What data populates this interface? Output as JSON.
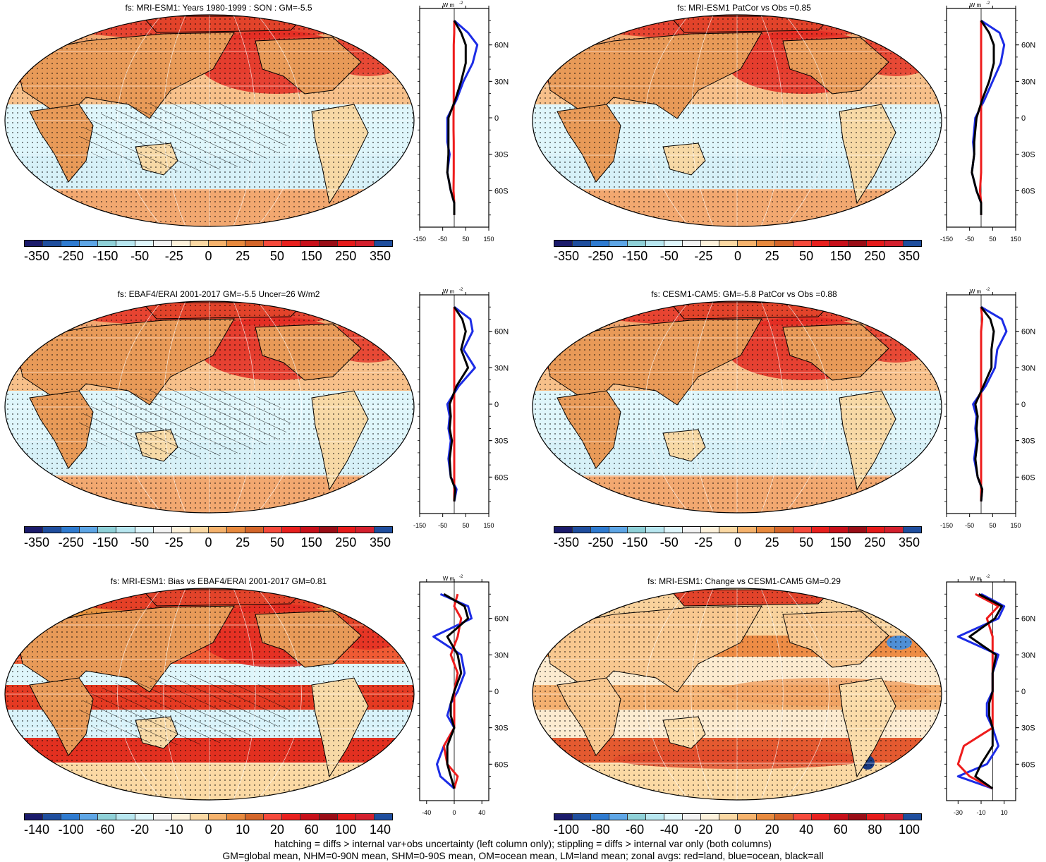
{
  "palette": [
    "#1b1b6b",
    "#1f4e9e",
    "#2f7bd0",
    "#5ea6e6",
    "#8fd1d8",
    "#b8e7f0",
    "#dff6fb",
    "#f4f4f4",
    "#fdf2dc",
    "#fbd9a4",
    "#f6b36d",
    "#e88a3e",
    "#d4662a",
    "#f64a3c",
    "#e8201e",
    "#c8101a",
    "#9a0d16",
    "#e61a1a",
    "#d4202e",
    "#1f4e9e"
  ],
  "colors": {
    "land": "#e8a060",
    "ocean_light": "#dff6fb",
    "ocean_warm": "#f2a870",
    "hot": "#e32a22",
    "cold": "#9fd8ea",
    "tan": "#f7d9a6",
    "red_line": "#ee1c1c",
    "blue_line": "#1c2ce6",
    "black_line": "#000000"
  },
  "panels": [
    {
      "title": "fs: MRI-ESM1: Years 1980-1999 : SON : GM=-5.5",
      "cb_labels": [
        "-350",
        "-250",
        "-150",
        "-50",
        "-25",
        "0",
        "25",
        "50",
        "150",
        "250",
        "350"
      ],
      "zonal_x_ticks": [
        "-150",
        "-50",
        "50",
        "150"
      ],
      "variant": "clim"
    },
    {
      "title": "fs: MRI-ESM1 PatCor vs Obs =0.85",
      "cb_labels": [
        "-350",
        "-250",
        "-150",
        "-50",
        "-25",
        "0",
        "25",
        "50",
        "150",
        "250",
        "350"
      ],
      "zonal_x_ticks": [
        "-150",
        "-50",
        "50",
        "150"
      ],
      "variant": "clim"
    },
    {
      "title": "fs: EBAF4/ERAI 2001-2017 GM=-5.5 Uncer=26 W/m2",
      "cb_labels": [
        "-350",
        "-250",
        "-150",
        "-50",
        "-25",
        "0",
        "25",
        "50",
        "150",
        "250",
        "350"
      ],
      "zonal_x_ticks": [
        "-150",
        "-50",
        "50",
        "150"
      ],
      "variant": "clim"
    },
    {
      "title": "fs: CESM1-CAM5: GM=-5.8 PatCor vs Obs =0.88",
      "cb_labels": [
        "-350",
        "-250",
        "-150",
        "-50",
        "-25",
        "0",
        "25",
        "50",
        "150",
        "250",
        "350"
      ],
      "zonal_x_ticks": [
        "-150",
        "-50",
        "50",
        "150"
      ],
      "variant": "clim"
    },
    {
      "title": "fs: MRI-ESM1: Bias vs EBAF4/ERAI 2001-2017  GM=0.81",
      "cb_labels": [
        "-140",
        "-100",
        "-60",
        "-20",
        "-10",
        "0",
        "10",
        "20",
        "60",
        "100",
        "140"
      ],
      "zonal_x_ticks": [
        "-40",
        "0",
        "40"
      ],
      "variant": "bias"
    },
    {
      "title": "fs: MRI-ESM1: Change vs CESM1-CAM5 GM=0.29",
      "cb_labels": [
        "-100",
        "-80",
        "-60",
        "-40",
        "-20",
        "0",
        "20",
        "40",
        "60",
        "80",
        "100"
      ],
      "zonal_x_ticks": [
        "-30",
        "-10",
        "10"
      ],
      "variant": "change"
    }
  ],
  "zonal_lat_labels": [
    "60N",
    "30N",
    "0",
    "30S",
    "60S"
  ],
  "zonal_unit": "W m",
  "zonal_unit_sup": "-2",
  "footer": {
    "line1": "hatching = diffs > internal var+obs uncertainty (left column only); stippling = diffs > internal var only (both columns)",
    "line2": "GM=global mean, NHM=0-90N mean, SHM=0-90S mean, OM=ocean mean, LM=land mean; zonal avgs: red=land, blue=ocean, black=all"
  },
  "chart_data": [
    {
      "type": "heatmap",
      "title": "fs: MRI-ESM1: Years 1980-1999 : SON : GM=-5.5",
      "colorbar": [
        -350,
        -250,
        -150,
        -50,
        -25,
        0,
        25,
        50,
        150,
        250,
        350
      ],
      "zonal_profile": {
        "lat": [
          80,
          70,
          60,
          45,
          30,
          15,
          0,
          -10,
          -20,
          -30,
          -45,
          -60,
          -70,
          -80
        ],
        "land": [
          0,
          0,
          -2,
          -2,
          -2,
          -2,
          -3,
          -3,
          -2,
          -2,
          -2,
          -3,
          0,
          0
        ],
        "ocean": [
          0,
          60,
          100,
          80,
          40,
          10,
          -30,
          -30,
          -30,
          -20,
          -30,
          -15,
          0,
          0
        ],
        "all": [
          0,
          30,
          50,
          50,
          30,
          5,
          -25,
          -25,
          -25,
          -25,
          -30,
          -15,
          0,
          0
        ]
      }
    },
    {
      "type": "heatmap",
      "title": "fs: MRI-ESM1 PatCor vs Obs =0.85",
      "colorbar": [
        -350,
        -250,
        -150,
        -50,
        -25,
        0,
        25,
        50,
        150,
        250,
        350
      ],
      "zonal_profile": {
        "lat": [
          80,
          70,
          60,
          45,
          30,
          15,
          0,
          -10,
          -20,
          -30,
          -45,
          -60,
          -70,
          -80
        ],
        "land": [
          0,
          0,
          0,
          0,
          0,
          0,
          0,
          0,
          0,
          0,
          0,
          -5,
          0,
          0
        ],
        "ocean": [
          0,
          80,
          100,
          85,
          50,
          15,
          -25,
          -30,
          -35,
          -30,
          -40,
          -20,
          0,
          0
        ],
        "all": [
          0,
          35,
          55,
          55,
          35,
          5,
          -20,
          -25,
          -30,
          -30,
          -40,
          -20,
          0,
          0
        ]
      }
    },
    {
      "type": "heatmap",
      "title": "fs: EBAF4/ERAI 2001-2017 GM=-5.5 Uncer=26 W/m2",
      "colorbar": [
        -350,
        -250,
        -150,
        -50,
        -25,
        0,
        25,
        50,
        150,
        250,
        350
      ],
      "zonal_profile": {
        "lat": [
          80,
          70,
          60,
          45,
          30,
          15,
          0,
          -10,
          -20,
          -30,
          -45,
          -60,
          -70,
          -80
        ],
        "land": [
          0,
          0,
          0,
          0,
          0,
          0,
          0,
          0,
          0,
          0,
          0,
          0,
          0,
          0
        ],
        "ocean": [
          0,
          70,
          80,
          40,
          90,
          20,
          -30,
          -20,
          -25,
          -15,
          -25,
          -15,
          10,
          0
        ],
        "all": [
          0,
          35,
          50,
          30,
          60,
          10,
          -20,
          -15,
          -20,
          -10,
          -20,
          -15,
          5,
          0
        ]
      }
    },
    {
      "type": "heatmap",
      "title": "fs: CESM1-CAM5: GM=-5.8 PatCor vs Obs =0.88",
      "colorbar": [
        -350,
        -250,
        -150,
        -50,
        -25,
        0,
        25,
        50,
        150,
        250,
        350
      ],
      "zonal_profile": {
        "lat": [
          80,
          70,
          60,
          45,
          30,
          15,
          0,
          -10,
          -20,
          -30,
          -45,
          -60,
          -70,
          -80
        ],
        "land": [
          0,
          5,
          0,
          0,
          0,
          0,
          0,
          0,
          0,
          0,
          0,
          0,
          0,
          0
        ],
        "ocean": [
          0,
          90,
          110,
          70,
          60,
          20,
          -35,
          -20,
          -25,
          -20,
          -30,
          -15,
          5,
          0
        ],
        "all": [
          0,
          40,
          55,
          45,
          45,
          10,
          -25,
          -15,
          -20,
          -15,
          -25,
          -15,
          5,
          0
        ]
      }
    },
    {
      "type": "heatmap",
      "title": "fs: MRI-ESM1: Bias vs EBAF4/ERAI 2001-2017  GM=0.81",
      "colorbar": [
        -140,
        -100,
        -60,
        -20,
        -10,
        0,
        10,
        20,
        60,
        100,
        140
      ],
      "zonal_profile": {
        "lat": [
          80,
          70,
          60,
          45,
          30,
          15,
          0,
          -10,
          -20,
          -30,
          -45,
          -60,
          -70,
          -80
        ],
        "land": [
          5,
          0,
          10,
          5,
          -5,
          5,
          0,
          0,
          0,
          0,
          -15,
          -10,
          5,
          0
        ],
        "ocean": [
          -20,
          20,
          25,
          -30,
          10,
          15,
          5,
          -5,
          -10,
          0,
          -15,
          -25,
          -20,
          0
        ],
        "all": [
          -15,
          15,
          20,
          -10,
          5,
          10,
          0,
          -5,
          -5,
          0,
          -10,
          -10,
          -5,
          0
        ]
      }
    },
    {
      "type": "heatmap",
      "title": "fs: MRI-ESM1: Change vs CESM1-CAM5 GM=0.29",
      "colorbar": [
        -100,
        -80,
        -60,
        -40,
        -20,
        0,
        20,
        40,
        60,
        80,
        100
      ],
      "zonal_profile": {
        "lat": [
          80,
          70,
          60,
          45,
          30,
          15,
          0,
          -10,
          -20,
          -30,
          -45,
          -60,
          -70,
          -80
        ],
        "land": [
          -15,
          5,
          -5,
          0,
          0,
          0,
          0,
          0,
          0,
          0,
          -25,
          -30,
          -20,
          0
        ],
        "ocean": [
          -10,
          10,
          5,
          -30,
          5,
          0,
          0,
          -5,
          -5,
          0,
          5,
          -5,
          -30,
          0
        ],
        "all": [
          -12,
          8,
          2,
          -20,
          3,
          0,
          0,
          -3,
          -3,
          0,
          0,
          -10,
          -15,
          0
        ]
      }
    }
  ]
}
